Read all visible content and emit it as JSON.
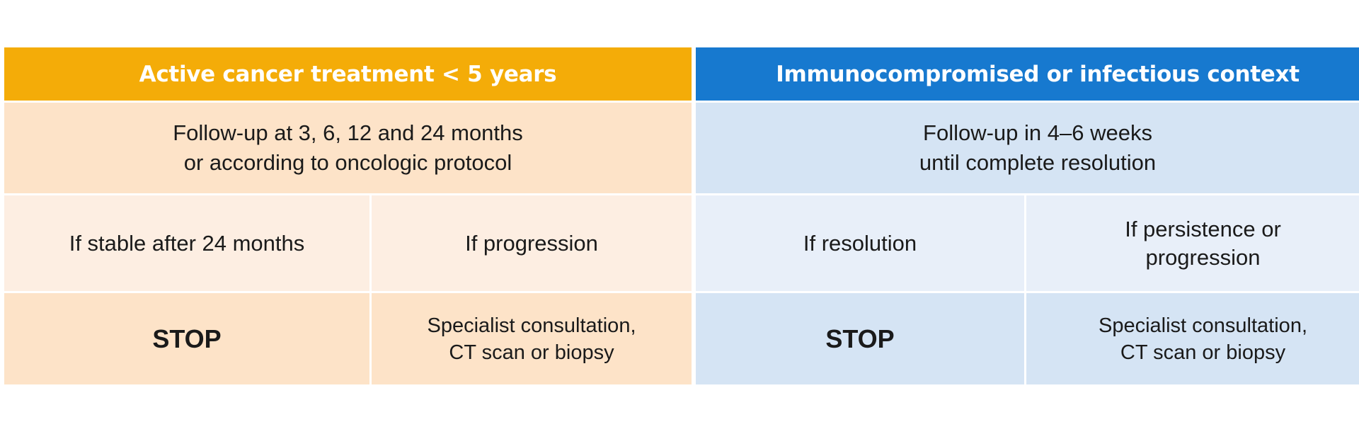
{
  "colors": {
    "cancer_header": "#f4ac08",
    "infectious_header": "#1779cf",
    "cancer_cell": "#fde3c8",
    "cancer_cell_light": "#fdeee2",
    "infectious_cell": "#d5e4f4",
    "infectious_cell_light": "#e8eff9"
  },
  "cancer": {
    "header": "Active cancer treatment < 5 years",
    "followup": {
      "line1": "Follow-up at 3, 6, 12 and 24 months",
      "line2": "or according to oncologic protocol"
    },
    "condition_a": "If stable after 24 months",
    "condition_b": "If progression",
    "action_a": "STOP",
    "action_b": {
      "line1": "Specialist consultation,",
      "line2": "CT scan or biopsy"
    }
  },
  "infectious": {
    "header": "Immunocompromised or infectious context",
    "followup": {
      "line1": "Follow-up in 4–6 weeks",
      "line2": "until complete resolution"
    },
    "condition_a": "If resolution",
    "condition_b": {
      "line1": "If persistence or",
      "line2": "progression"
    },
    "action_a": "STOP",
    "action_b": {
      "line1": "Specialist consultation,",
      "line2": "CT scan or biopsy"
    }
  }
}
